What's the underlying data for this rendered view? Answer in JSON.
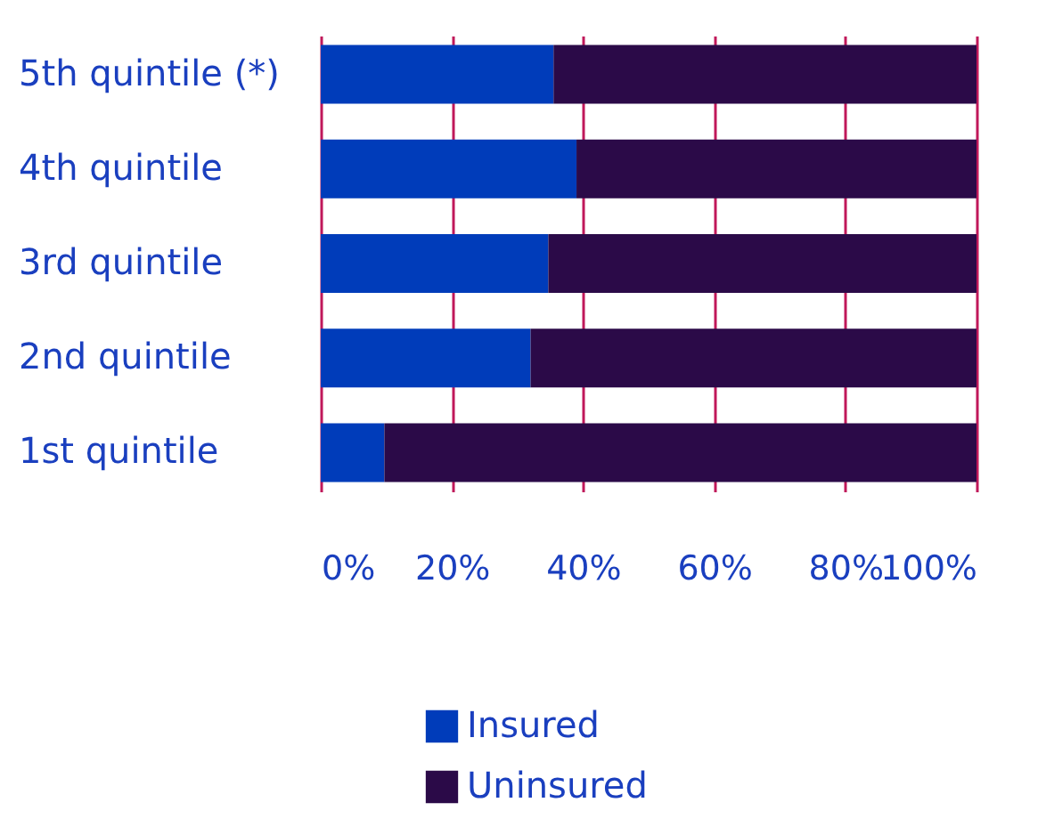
{
  "chart_data": {
    "type": "bar",
    "orientation": "horizontal",
    "stacked": true,
    "categories": [
      "5th quintile (*)",
      "4th quintile",
      "3rd quintile",
      "2nd quintile",
      "1st quintile"
    ],
    "series": [
      {
        "name": "Insured",
        "color": "#003cba",
        "values": [
          35.5,
          39,
          34.7,
          32,
          9.7
        ]
      },
      {
        "name": "Uninsured",
        "color": "#2b0a48",
        "values": [
          64.5,
          61,
          65.3,
          68,
          90.3
        ]
      }
    ],
    "xlim": [
      0,
      100
    ],
    "xticks": [
      {
        "value": 0,
        "label": "0%"
      },
      {
        "value": 20,
        "label": "20%"
      },
      {
        "value": 40,
        "label": "40%"
      },
      {
        "value": 60,
        "label": "60%"
      },
      {
        "value": 80,
        "label": "80%"
      },
      {
        "value": 100,
        "label": "100%"
      }
    ],
    "grid": "x",
    "legend": "bottom"
  }
}
